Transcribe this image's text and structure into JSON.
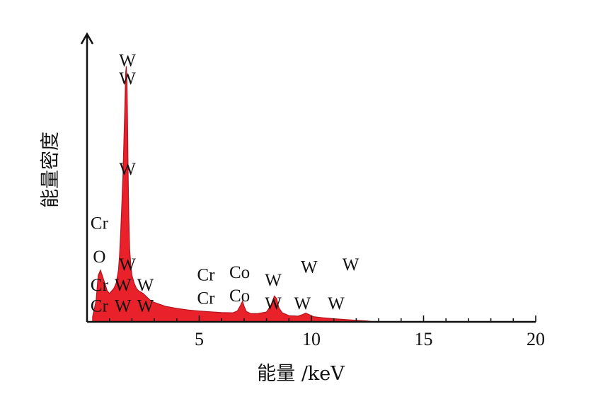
{
  "chart_data": {
    "type": "area",
    "xlabel": "能量 /keV",
    "ylabel": "能量密度",
    "xlim": [
      0,
      20
    ],
    "ylim": [
      0,
      100
    ],
    "x_ticks": [
      5,
      10,
      15,
      20
    ],
    "y_ticks_shown": false,
    "grid": false,
    "fill_color": "#e8212a",
    "outline_color": "#b2151d",
    "series": [
      {
        "x": [
          0.25,
          0.4,
          0.5,
          0.6,
          0.75,
          0.9,
          1.0,
          1.1,
          1.2,
          1.3,
          1.4,
          1.45,
          1.5,
          1.55,
          1.6,
          1.65,
          1.7,
          1.72,
          1.75,
          1.78,
          1.8,
          1.83,
          1.86,
          1.9,
          1.95,
          2.0,
          2.1,
          2.2,
          2.3,
          2.5,
          2.8,
          3.0,
          3.5,
          4.0,
          4.5,
          5.0,
          5.5,
          6.0,
          6.5,
          6.7,
          6.85,
          6.93,
          7.0,
          7.1,
          7.3,
          7.6,
          8.0,
          8.2,
          8.35,
          8.45,
          8.55,
          8.7,
          9.0,
          9.4,
          9.6,
          9.75,
          9.9,
          10.1,
          10.5,
          11.0,
          11.5,
          12.0,
          12.5,
          12.8
        ],
        "y": [
          2,
          8,
          18,
          20,
          16,
          12,
          11,
          12,
          13,
          15,
          20,
          26,
          35,
          45,
          56,
          72,
          88,
          96,
          99,
          93,
          80,
          58,
          40,
          28,
          22,
          18,
          15,
          13,
          12,
          11,
          8.5,
          7.5,
          6.0,
          5.2,
          4.6,
          4.2,
          3.9,
          3.6,
          3.5,
          4.2,
          6.5,
          8.0,
          6.0,
          4.0,
          3.2,
          3.2,
          3.8,
          6.5,
          10.0,
          9.0,
          5.5,
          3.5,
          2.4,
          2.2,
          2.8,
          3.4,
          2.8,
          2.0,
          1.6,
          1.2,
          0.9,
          0.6,
          0.3,
          0
        ]
      }
    ],
    "annotations": [
      {
        "text": "W",
        "x": 1.8,
        "y": 99
      },
      {
        "text": "W",
        "x": 1.8,
        "y": 92
      },
      {
        "text": "W",
        "x": 1.8,
        "y": 57
      },
      {
        "text": "Cr",
        "x": 0.55,
        "y": 36
      },
      {
        "text": "O",
        "x": 0.55,
        "y": 23
      },
      {
        "text": "W",
        "x": 1.8,
        "y": 20
      },
      {
        "text": "Cr",
        "x": 0.55,
        "y": 12
      },
      {
        "text": "W",
        "x": 1.6,
        "y": 12
      },
      {
        "text": "W",
        "x": 2.6,
        "y": 12
      },
      {
        "text": "Cr",
        "x": 0.55,
        "y": 4
      },
      {
        "text": "W",
        "x": 1.6,
        "y": 4
      },
      {
        "text": "W",
        "x": 2.6,
        "y": 4
      },
      {
        "text": "Cr",
        "x": 5.3,
        "y": 16
      },
      {
        "text": "Co",
        "x": 6.8,
        "y": 17
      },
      {
        "text": "W",
        "x": 8.3,
        "y": 14
      },
      {
        "text": "W",
        "x": 9.9,
        "y": 19
      },
      {
        "text": "W",
        "x": 11.75,
        "y": 20
      },
      {
        "text": "Cr",
        "x": 5.3,
        "y": 7
      },
      {
        "text": "Co",
        "x": 6.8,
        "y": 8
      },
      {
        "text": "W",
        "x": 8.3,
        "y": 5
      },
      {
        "text": "W",
        "x": 9.6,
        "y": 5
      },
      {
        "text": "W",
        "x": 11.1,
        "y": 5
      }
    ]
  }
}
